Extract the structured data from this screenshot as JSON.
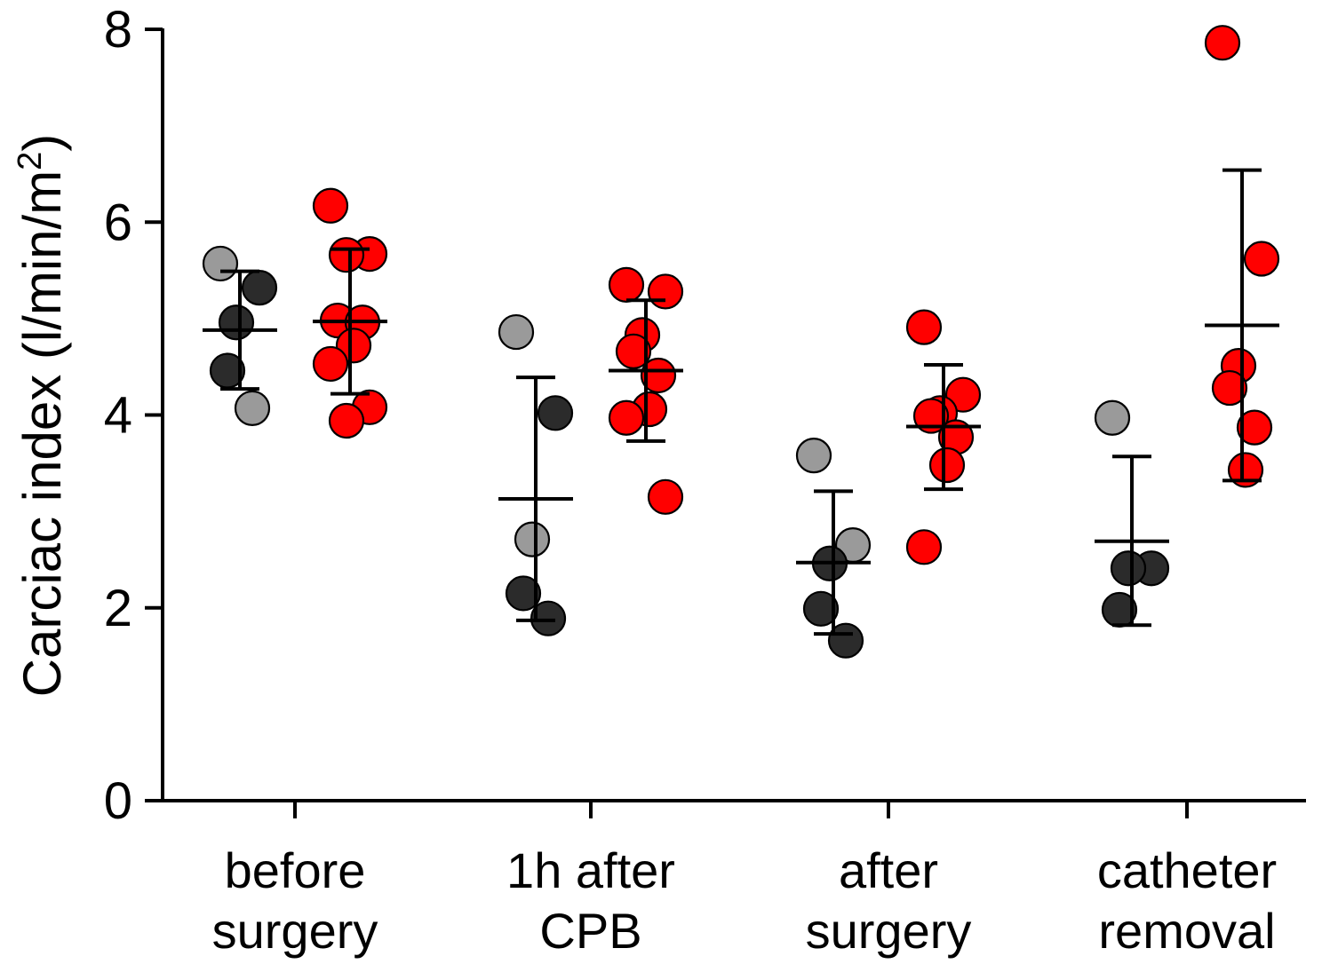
{
  "chart_data": {
    "type": "scatter",
    "ylabel": "Carciac index (l/min/m",
    "ylabel_sup": "2",
    "ylabel_close": ")",
    "xlabel": "",
    "ylim": [
      0,
      8
    ],
    "yticks": [
      "0",
      "2",
      "4",
      "6",
      "8"
    ],
    "grid": false,
    "categories": [
      {
        "line1": "before",
        "line2": "surgery"
      },
      {
        "line1": "1h after",
        "line2": "CPB"
      },
      {
        "line1": "after",
        "line2": "surgery"
      },
      {
        "line1": "catheter",
        "line2": "removal"
      }
    ],
    "colors": {
      "dark": "#2b2b2b",
      "light": "#9a9a9a",
      "red": "#ff0000",
      "axis": "#000000"
    },
    "groups": [
      {
        "category": 0,
        "series": "black",
        "mean": 4.88,
        "err_low": 4.27,
        "err_high": 5.49,
        "points": [
          {
            "y": 5.57,
            "shade": "light"
          },
          {
            "y": 5.32,
            "shade": "dark"
          },
          {
            "y": 4.96,
            "shade": "dark"
          },
          {
            "y": 4.46,
            "shade": "dark"
          },
          {
            "y": 4.07,
            "shade": "light"
          }
        ]
      },
      {
        "category": 0,
        "series": "red",
        "mean": 4.97,
        "err_low": 4.22,
        "err_high": 5.72,
        "points": [
          {
            "y": 6.17
          },
          {
            "y": 5.67
          },
          {
            "y": 5.66
          },
          {
            "y": 4.98
          },
          {
            "y": 4.96
          },
          {
            "y": 4.72
          },
          {
            "y": 4.53
          },
          {
            "y": 4.08
          },
          {
            "y": 3.94
          }
        ]
      },
      {
        "category": 1,
        "series": "black",
        "mean": 3.13,
        "err_low": 1.87,
        "err_high": 4.39,
        "points": [
          {
            "y": 4.86,
            "shade": "light"
          },
          {
            "y": 4.02,
            "shade": "dark"
          },
          {
            "y": 2.71,
            "shade": "light"
          },
          {
            "y": 2.15,
            "shade": "dark"
          },
          {
            "y": 1.89,
            "shade": "dark"
          }
        ]
      },
      {
        "category": 1,
        "series": "red",
        "mean": 4.46,
        "err_low": 3.73,
        "err_high": 5.19,
        "points": [
          {
            "y": 5.35
          },
          {
            "y": 5.28
          },
          {
            "y": 4.83
          },
          {
            "y": 4.66
          },
          {
            "y": 4.41
          },
          {
            "y": 4.06
          },
          {
            "y": 3.97
          },
          {
            "y": 3.15
          }
        ]
      },
      {
        "category": 2,
        "series": "black",
        "mean": 2.47,
        "err_low": 1.73,
        "err_high": 3.21,
        "points": [
          {
            "y": 3.58,
            "shade": "light"
          },
          {
            "y": 2.65,
            "shade": "light"
          },
          {
            "y": 2.46,
            "shade": "dark"
          },
          {
            "y": 1.99,
            "shade": "dark"
          },
          {
            "y": 1.66,
            "shade": "dark"
          }
        ]
      },
      {
        "category": 2,
        "series": "red",
        "mean": 3.88,
        "err_low": 3.23,
        "err_high": 4.52,
        "points": [
          {
            "y": 4.91
          },
          {
            "y": 4.21
          },
          {
            "y": 4.02
          },
          {
            "y": 3.99
          },
          {
            "y": 3.77
          },
          {
            "y": 3.48
          },
          {
            "y": 2.63
          }
        ]
      },
      {
        "category": 3,
        "series": "black",
        "mean": 2.69,
        "err_low": 1.82,
        "err_high": 3.57,
        "points": [
          {
            "y": 3.97,
            "shade": "light"
          },
          {
            "y": 2.41,
            "shade": "dark"
          },
          {
            "y": 2.41,
            "shade": "dark"
          },
          {
            "y": 1.98,
            "shade": "dark"
          }
        ]
      },
      {
        "category": 3,
        "series": "red",
        "mean": 4.93,
        "err_low": 3.32,
        "err_high": 6.54,
        "points": [
          {
            "y": 7.86
          },
          {
            "y": 5.62
          },
          {
            "y": 4.51
          },
          {
            "y": 4.28
          },
          {
            "y": 3.87
          },
          {
            "y": 3.43
          }
        ]
      }
    ]
  }
}
